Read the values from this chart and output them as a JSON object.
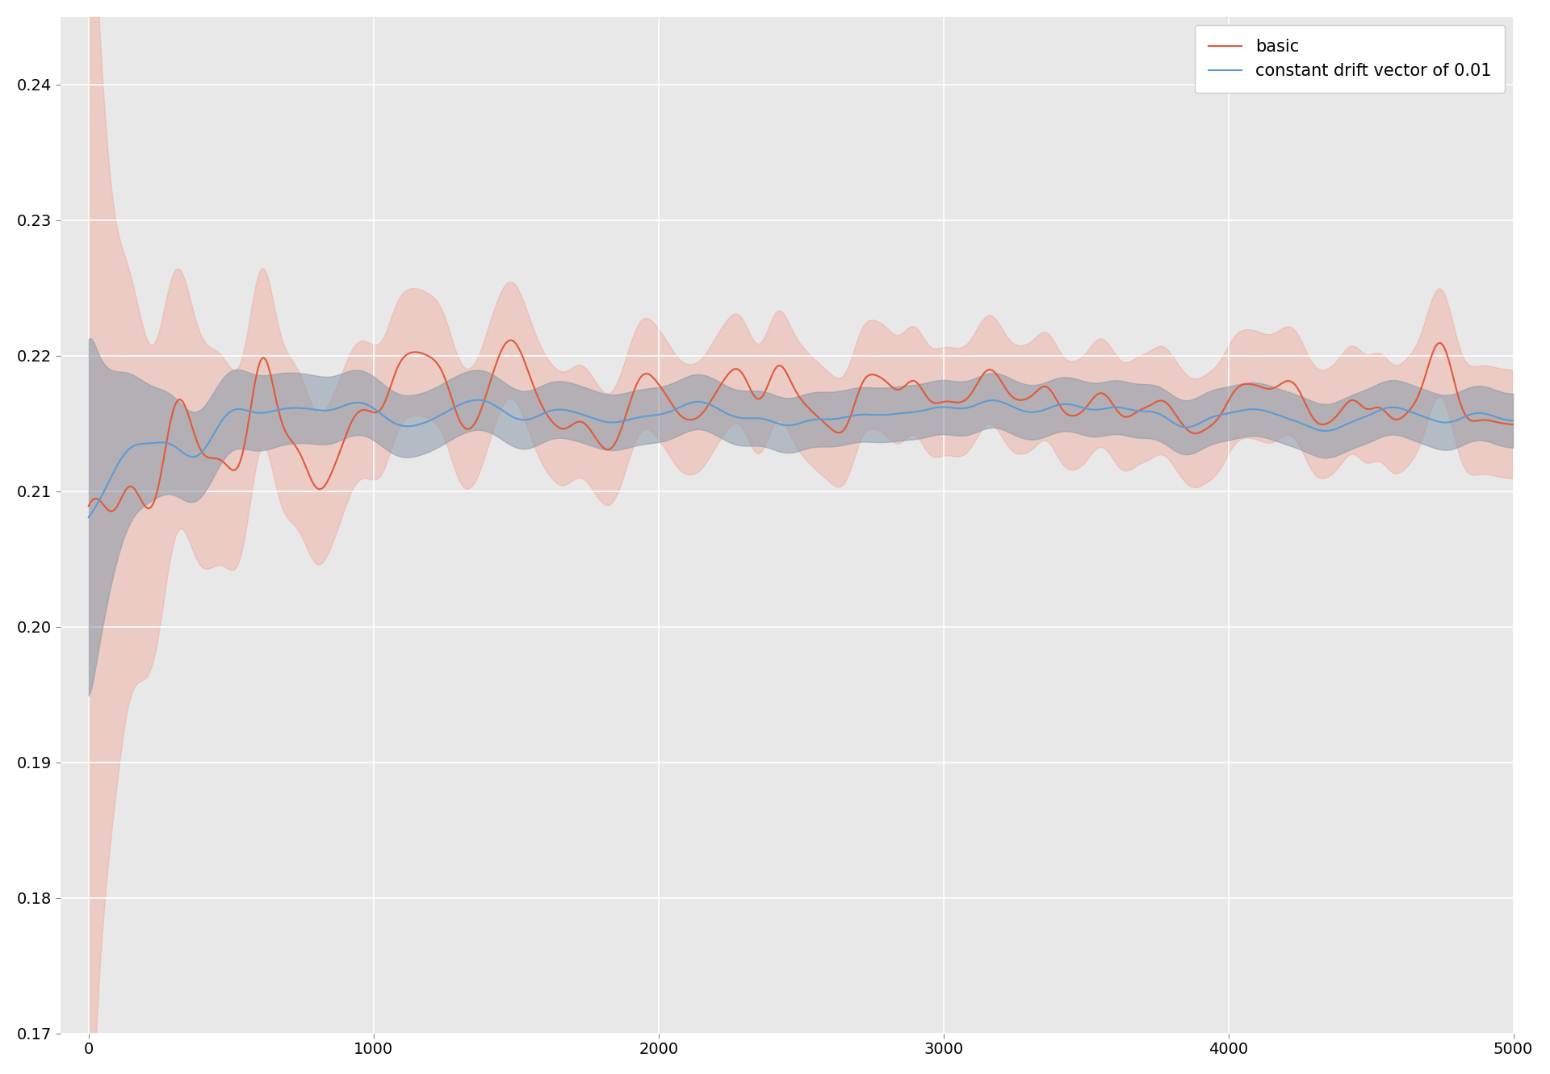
{
  "title": "",
  "xlim": [
    -100,
    5000
  ],
  "ylim": [
    0.17,
    0.245
  ],
  "yticks": [
    0.17,
    0.18,
    0.19,
    0.2,
    0.21,
    0.22,
    0.23,
    0.24
  ],
  "xticks": [
    0,
    1000,
    2000,
    3000,
    4000,
    5000
  ],
  "n_steps": 5000,
  "red_color": "#E05A3A",
  "blue_color": "#5B9BD5",
  "red_fill_color": "#F0A090",
  "blue_fill_color": "#8898A8",
  "bg_color": "#E8E8E8",
  "grid_color": "#FFFFFF",
  "legend_labels": [
    "basic",
    "constant drift vector of 0.01"
  ],
  "red_alpha": 0.4,
  "blue_alpha": 0.55,
  "seed": 42
}
